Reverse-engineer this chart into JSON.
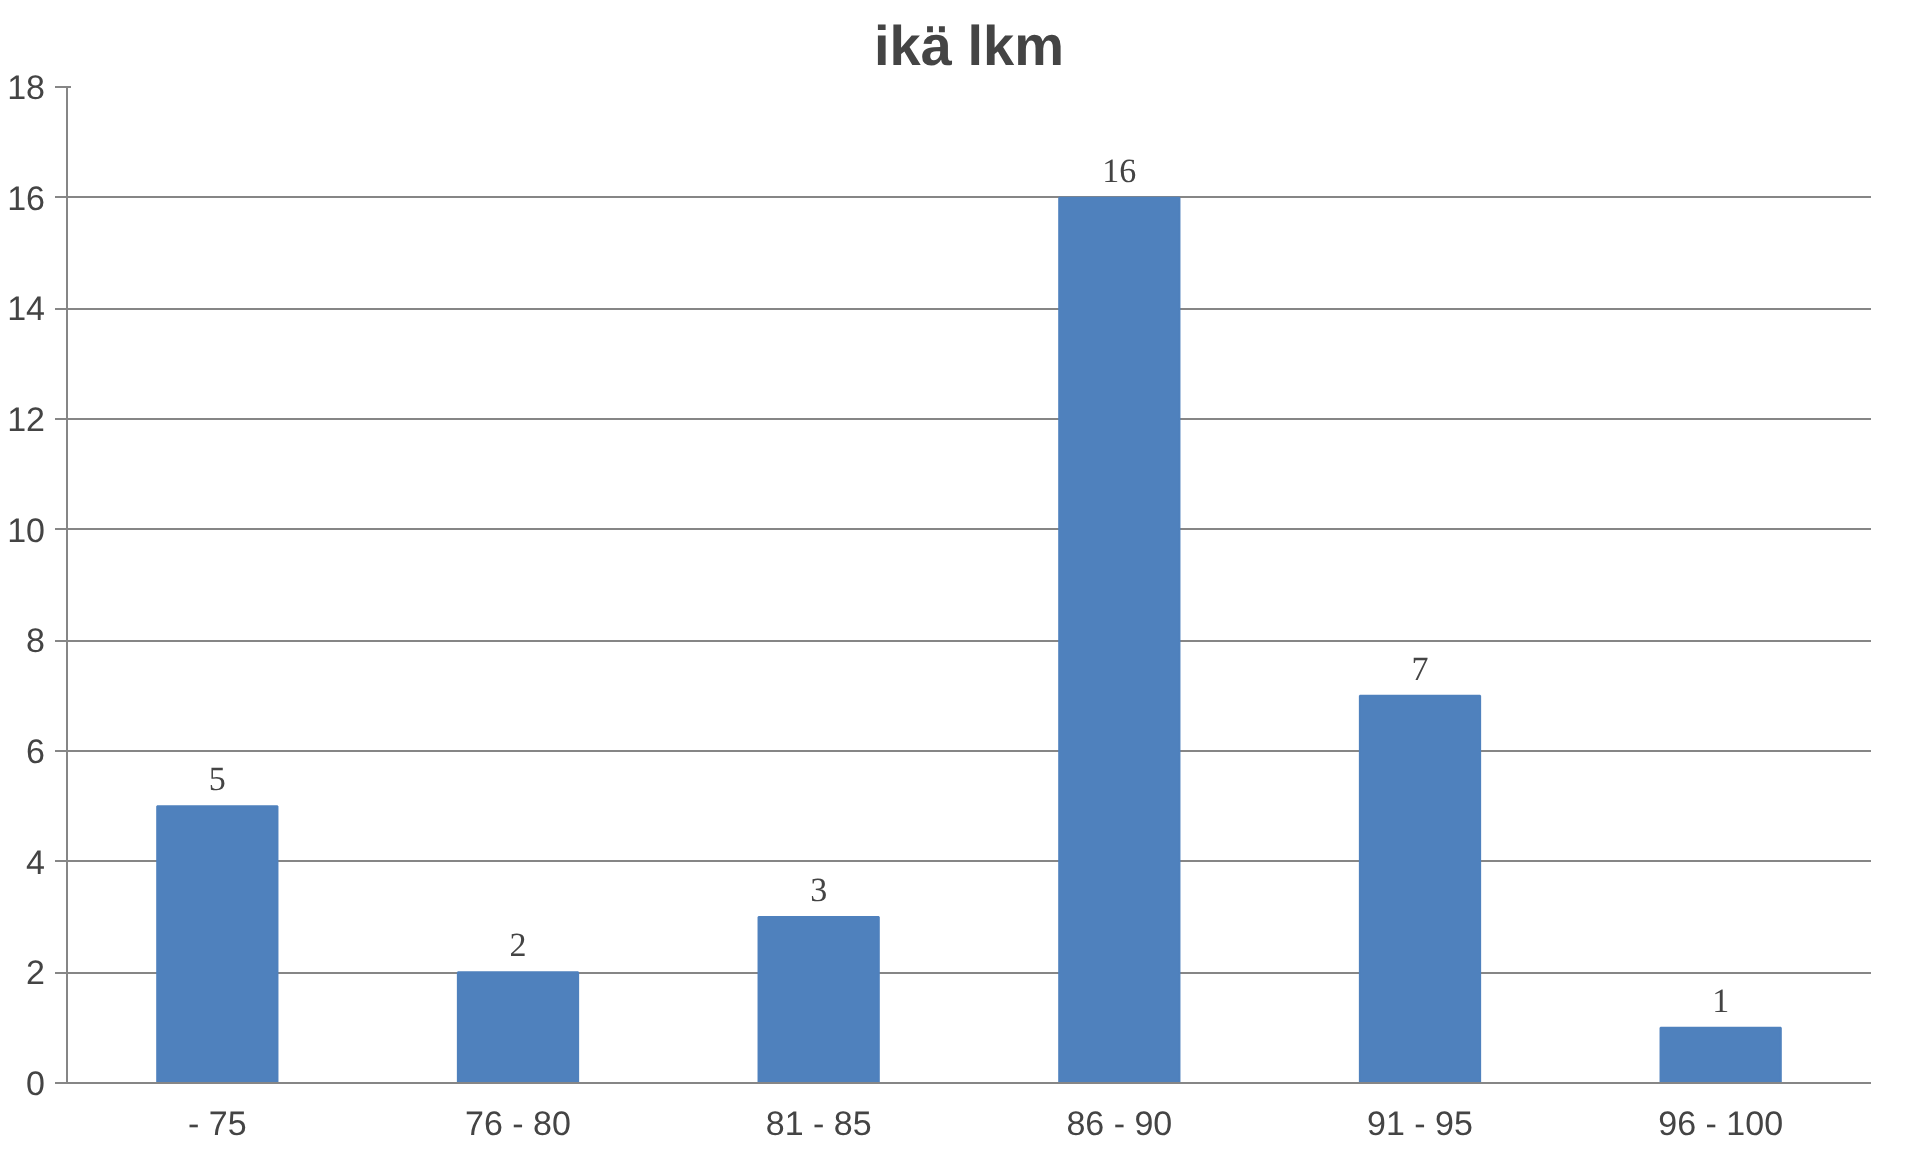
{
  "chart_data": {
    "type": "bar",
    "title": "ikä lkm",
    "categories": [
      "- 75",
      "76 - 80",
      "81 - 85",
      "86 - 90",
      "91 - 95",
      "96 - 100"
    ],
    "values": [
      5,
      2,
      3,
      16,
      7,
      1
    ],
    "color": "#4f81bd",
    "ylim": [
      0,
      18
    ],
    "yticks": [
      0,
      2,
      4,
      6,
      8,
      10,
      12,
      14,
      16,
      18
    ],
    "grid": "y",
    "data_labels": true
  }
}
